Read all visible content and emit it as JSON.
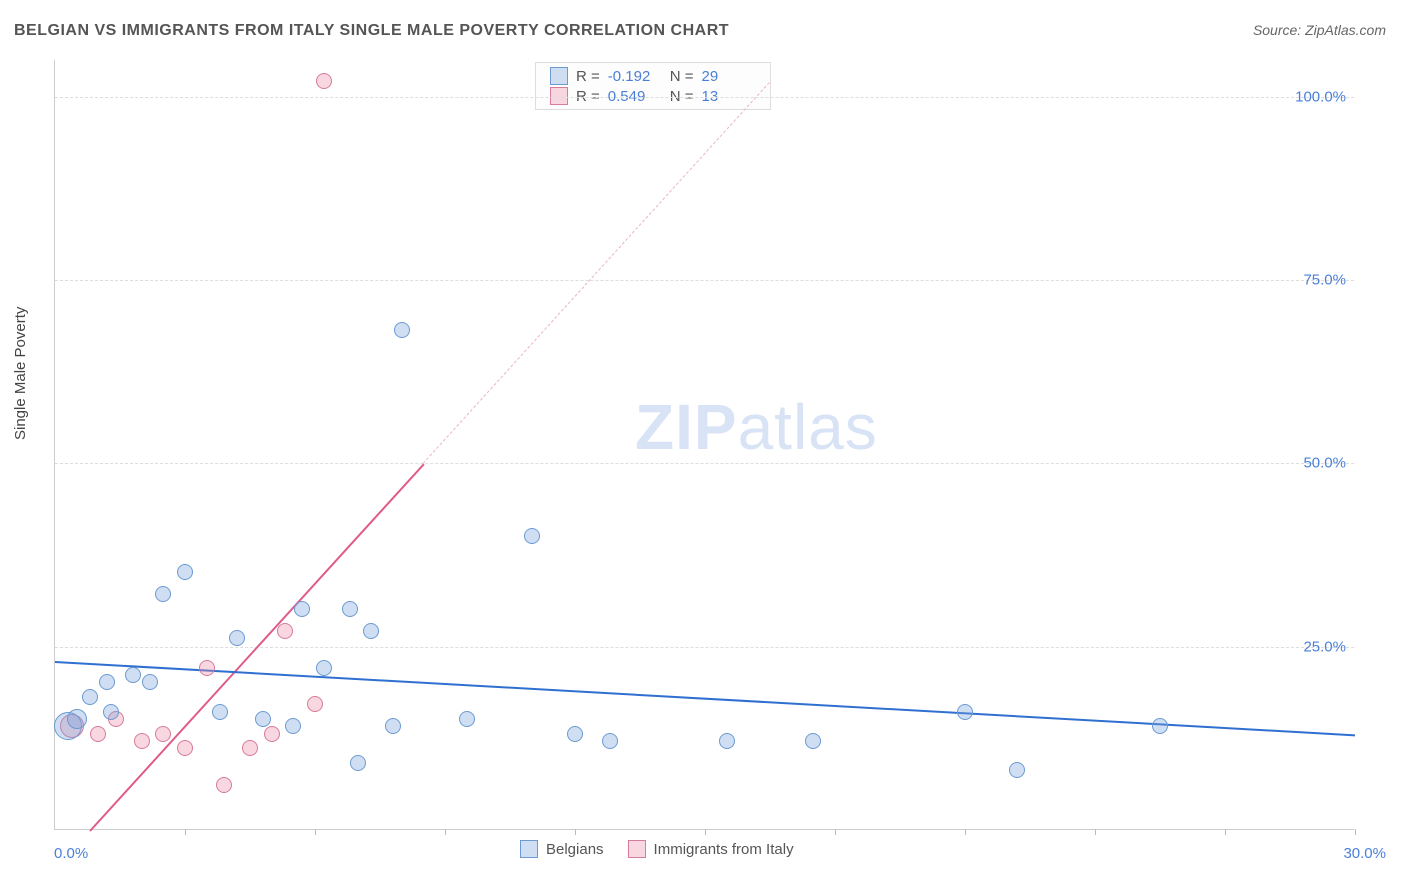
{
  "title": "BELGIAN VS IMMIGRANTS FROM ITALY SINGLE MALE POVERTY CORRELATION CHART",
  "source": "Source: ZipAtlas.com",
  "ylabel": "Single Male Poverty",
  "watermark_zip": "ZIP",
  "watermark_atlas": "atlas",
  "chart": {
    "type": "scatter",
    "background_color": "#ffffff",
    "grid_color": "#dddddd",
    "axis_color": "#cccccc",
    "xlim": [
      0,
      30
    ],
    "ylim": [
      0,
      105
    ],
    "yticks": [
      {
        "v": 25,
        "label": "25.0%"
      },
      {
        "v": 50,
        "label": "50.0%"
      },
      {
        "v": 75,
        "label": "75.0%"
      },
      {
        "v": 100,
        "label": "100.0%"
      }
    ],
    "xtick_marks": [
      3,
      6,
      9,
      12,
      15,
      18,
      21,
      24,
      27,
      30
    ],
    "x_axis_labels": {
      "left": "0.0%",
      "right": "30.0%"
    },
    "label_fontsize": 15,
    "title_fontsize": 16,
    "tick_color": "#4a7fd8"
  },
  "series": {
    "belgians": {
      "label": "Belgians",
      "fill": "rgba(120,160,220,0.35)",
      "stroke": "#6b9bd1",
      "marker_radius": 8,
      "trend": {
        "x1": 0,
        "y1": 23,
        "x2": 30,
        "y2": 13,
        "color": "#2f6fd0",
        "style": "solid",
        "width": 2.5
      },
      "R": "-0.192",
      "N": "29",
      "points": [
        {
          "x": 0.3,
          "y": 14,
          "r": 14
        },
        {
          "x": 0.5,
          "y": 15,
          "r": 10
        },
        {
          "x": 0.8,
          "y": 18,
          "r": 8
        },
        {
          "x": 1.2,
          "y": 20,
          "r": 8
        },
        {
          "x": 1.3,
          "y": 16,
          "r": 8
        },
        {
          "x": 1.8,
          "y": 21,
          "r": 8
        },
        {
          "x": 2.2,
          "y": 20,
          "r": 8
        },
        {
          "x": 2.5,
          "y": 32,
          "r": 8
        },
        {
          "x": 3.0,
          "y": 35,
          "r": 8
        },
        {
          "x": 3.8,
          "y": 16,
          "r": 8
        },
        {
          "x": 4.2,
          "y": 26,
          "r": 8
        },
        {
          "x": 4.8,
          "y": 15,
          "r": 8
        },
        {
          "x": 5.5,
          "y": 14,
          "r": 8
        },
        {
          "x": 5.7,
          "y": 30,
          "r": 8
        },
        {
          "x": 6.2,
          "y": 22,
          "r": 8
        },
        {
          "x": 6.8,
          "y": 30,
          "r": 8
        },
        {
          "x": 7.0,
          "y": 9,
          "r": 8
        },
        {
          "x": 7.3,
          "y": 27,
          "r": 8
        },
        {
          "x": 7.8,
          "y": 14,
          "r": 8
        },
        {
          "x": 8.0,
          "y": 68,
          "r": 8
        },
        {
          "x": 9.5,
          "y": 15,
          "r": 8
        },
        {
          "x": 11.0,
          "y": 40,
          "r": 8
        },
        {
          "x": 12.0,
          "y": 13,
          "r": 8
        },
        {
          "x": 12.8,
          "y": 12,
          "r": 8
        },
        {
          "x": 15.5,
          "y": 12,
          "r": 8
        },
        {
          "x": 17.5,
          "y": 12,
          "r": 8
        },
        {
          "x": 21.0,
          "y": 16,
          "r": 8
        },
        {
          "x": 22.2,
          "y": 8,
          "r": 8
        },
        {
          "x": 25.5,
          "y": 14,
          "r": 8
        }
      ]
    },
    "italy": {
      "label": "Immigrants from Italy",
      "fill": "rgba(235,140,170,0.35)",
      "stroke": "#d67b9b",
      "marker_radius": 8,
      "trend_solid": {
        "x1": 0.8,
        "y1": 0,
        "x2": 8.5,
        "y2": 50,
        "color": "#e05a8a",
        "style": "solid",
        "width": 2
      },
      "trend_dash": {
        "x1": 8.5,
        "y1": 50,
        "x2": 16.5,
        "y2": 102,
        "color": "#e8b5c5",
        "style": "dashed",
        "width": 1.5
      },
      "R": "0.549",
      "N": "13",
      "points": [
        {
          "x": 0.4,
          "y": 14,
          "r": 12
        },
        {
          "x": 1.0,
          "y": 13,
          "r": 8
        },
        {
          "x": 1.4,
          "y": 15,
          "r": 8
        },
        {
          "x": 2.0,
          "y": 12,
          "r": 8
        },
        {
          "x": 2.5,
          "y": 13,
          "r": 8
        },
        {
          "x": 3.0,
          "y": 11,
          "r": 8
        },
        {
          "x": 3.5,
          "y": 22,
          "r": 8
        },
        {
          "x": 3.9,
          "y": 6,
          "r": 8
        },
        {
          "x": 4.5,
          "y": 11,
          "r": 8
        },
        {
          "x": 5.0,
          "y": 13,
          "r": 8
        },
        {
          "x": 5.3,
          "y": 27,
          "r": 8
        },
        {
          "x": 6.0,
          "y": 17,
          "r": 8
        },
        {
          "x": 6.2,
          "y": 102,
          "r": 8
        }
      ]
    }
  },
  "legend_rn": {
    "r_label": "R =",
    "n_label": "N ="
  },
  "legend_bottom": {
    "items": [
      {
        "key": "belgians"
      },
      {
        "key": "italy"
      }
    ]
  }
}
